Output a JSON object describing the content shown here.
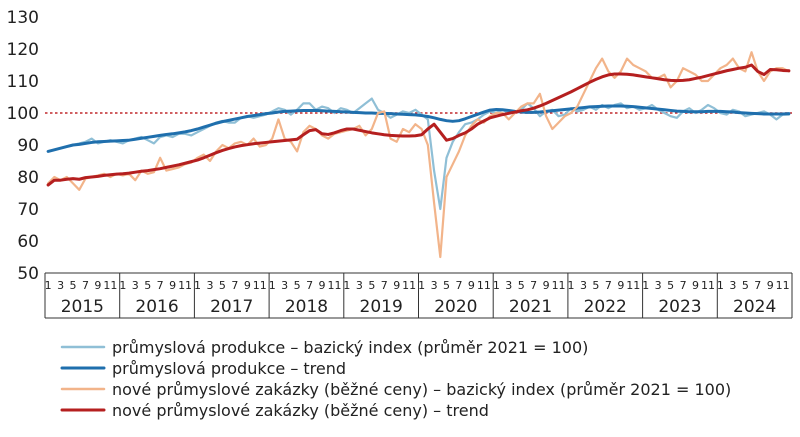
{
  "chart_data": {
    "type": "line",
    "ylim": [
      50,
      130
    ],
    "yticks": [
      50,
      60,
      70,
      80,
      90,
      100,
      110,
      120,
      130
    ],
    "reference_line": 100,
    "month_ticks": [
      "1",
      "3",
      "5",
      "7",
      "9",
      "11"
    ],
    "years": [
      "2015",
      "2016",
      "2017",
      "2018",
      "2019",
      "2020",
      "2021",
      "2022",
      "2023",
      "2024"
    ],
    "x_start": "2015-01",
    "x_end": "2024-12",
    "grid": false,
    "legend_position": "bottom",
    "series": [
      {
        "name": "průmyslová produkce – bazický index (průměr 2021 = 100)",
        "color": "#8fbfd6",
        "values": [
          88,
          88.5,
          89,
          89.5,
          90,
          90.5,
          91,
          92,
          90.5,
          91,
          91.5,
          91,
          90.5,
          91.5,
          92,
          92.5,
          91.5,
          90.5,
          92.5,
          93,
          92.5,
          93.5,
          93.5,
          93,
          94,
          95,
          96,
          97,
          97.5,
          97,
          97,
          98.5,
          99,
          98.5,
          99,
          99.5,
          100.5,
          101.5,
          101,
          99.5,
          101,
          103,
          103,
          101,
          102,
          101.5,
          100,
          101.5,
          101,
          100,
          101.5,
          103,
          104.5,
          101,
          100,
          98.5,
          99.5,
          100.5,
          100,
          101,
          99.5,
          98,
          82,
          70,
          86,
          91,
          94,
          96.5,
          97,
          98,
          99.5,
          100.5,
          100,
          101,
          100,
          100.5,
          101,
          103,
          101.5,
          99,
          100.5,
          101,
          99,
          99.5,
          101.5,
          100.5,
          101,
          102,
          101,
          102.5,
          101.5,
          102.5,
          103,
          101.5,
          102,
          101,
          101.5,
          102.5,
          101,
          100,
          99,
          98.5,
          100.5,
          101.5,
          100,
          101,
          102.5,
          101.5,
          100,
          99.5,
          101,
          100.5,
          99,
          99.5,
          100,
          100.5,
          99.5,
          98,
          99.5,
          99.5
        ]
      },
      {
        "name": "průmyslová produkce – trend",
        "color": "#1f6fad",
        "values": [
          88,
          88.5,
          89,
          89.5,
          90,
          90.2,
          90.5,
          90.8,
          91,
          91.1,
          91.2,
          91.3,
          91.4,
          91.5,
          91.8,
          92.1,
          92.4,
          92.7,
          93,
          93.3,
          93.5,
          93.8,
          94.1,
          94.5,
          95,
          95.6,
          96.2,
          96.8,
          97.3,
          97.7,
          98.1,
          98.5,
          98.9,
          99.2,
          99.5,
          99.8,
          100,
          100.3,
          100.5,
          100.6,
          100.7,
          100.8,
          100.8,
          100.8,
          100.7,
          100.6,
          100.5,
          100.4,
          100.3,
          100.2,
          100.1,
          100,
          100,
          99.9,
          99.9,
          99.8,
          99.7,
          99.6,
          99.5,
          99.4,
          99.2,
          98.9,
          98.5,
          98,
          97.6,
          97.4,
          97.6,
          98.2,
          98.9,
          99.6,
          100.3,
          100.9,
          101.1,
          101,
          100.8,
          100.5,
          100.3,
          100.2,
          100.2,
          100.3,
          100.5,
          100.7,
          100.9,
          101.1,
          101.3,
          101.5,
          101.7,
          101.9,
          102,
          102.1,
          102.2,
          102.2,
          102.2,
          102.1,
          102,
          101.8,
          101.6,
          101.4,
          101.2,
          101,
          100.8,
          100.6,
          100.5,
          100.4,
          100.4,
          100.4,
          100.5,
          100.5,
          100.5,
          100.4,
          100.3,
          100.1,
          100,
          99.9,
          99.8,
          99.7,
          99.7,
          99.7,
          99.7,
          99.8
        ]
      },
      {
        "name": "nové průmyslové zakázky (běžné ceny) – bazický index (průměr 2021 = 100)",
        "color": "#f2b48a",
        "values": [
          78,
          80,
          79,
          80,
          78,
          76,
          79.5,
          80,
          80.5,
          81,
          80,
          81,
          80.5,
          81,
          79,
          82,
          81,
          81.5,
          86,
          82,
          82.5,
          83,
          84,
          84.5,
          86,
          87,
          85,
          88,
          90,
          89,
          90.5,
          91,
          90,
          92,
          89.5,
          90,
          92,
          98,
          92,
          91,
          88,
          94,
          96,
          95,
          93,
          92,
          93.5,
          94,
          94.5,
          95,
          96,
          93,
          95,
          100,
          100.5,
          92,
          91,
          95,
          94,
          96.5,
          95,
          90,
          72,
          55,
          80,
          84,
          88,
          93,
          96,
          98,
          97,
          99,
          100,
          100,
          98,
          100,
          102,
          103,
          103,
          106,
          99,
          95,
          97,
          99,
          100,
          102,
          106,
          110,
          114,
          117,
          113,
          111,
          113,
          117,
          115,
          114,
          113,
          111,
          111,
          112,
          108,
          110,
          114,
          113,
          112,
          110,
          110,
          112,
          114,
          115,
          117,
          114,
          113,
          119,
          113,
          110,
          113,
          114,
          114,
          113
        ]
      },
      {
        "name": "nové průmyslové zakázky (běžné ceny) – trend",
        "color": "#b51f1f",
        "values": [
          77.5,
          79,
          79,
          79.3,
          79.5,
          79.3,
          79.8,
          80,
          80.2,
          80.5,
          80.7,
          80.9,
          81,
          81.2,
          81.5,
          81.8,
          82,
          82.3,
          82.6,
          83,
          83.4,
          83.8,
          84.3,
          84.8,
          85.3,
          86,
          86.8,
          87.6,
          88.3,
          88.9,
          89.4,
          89.8,
          90.1,
          90.4,
          90.6,
          90.8,
          91,
          91.2,
          91.4,
          91.6,
          91.8,
          93.2,
          94.5,
          94.8,
          93.5,
          93.3,
          93.8,
          94.5,
          95,
          95,
          94.6,
          94.2,
          93.8,
          93.5,
          93.2,
          93,
          92.9,
          92.8,
          92.8,
          92.9,
          93.2,
          95,
          96.5,
          94,
          91.5,
          92,
          93,
          93.8,
          95,
          96.5,
          97.5,
          98.5,
          99,
          99.5,
          99.9,
          100.3,
          100.7,
          101,
          101.5,
          102.2,
          103,
          103.9,
          104.8,
          105.7,
          106.6,
          107.6,
          108.6,
          109.6,
          110.5,
          111.3,
          111.9,
          112.2,
          112.2,
          112.1,
          111.9,
          111.6,
          111.3,
          111,
          110.7,
          110.4,
          110.2,
          110.1,
          110.2,
          110.4,
          110.8,
          111.2,
          111.7,
          112.2,
          112.7,
          113.2,
          113.6,
          114,
          114.3,
          115,
          113,
          112,
          113.6,
          113.5,
          113.3,
          113.2
        ]
      }
    ]
  }
}
